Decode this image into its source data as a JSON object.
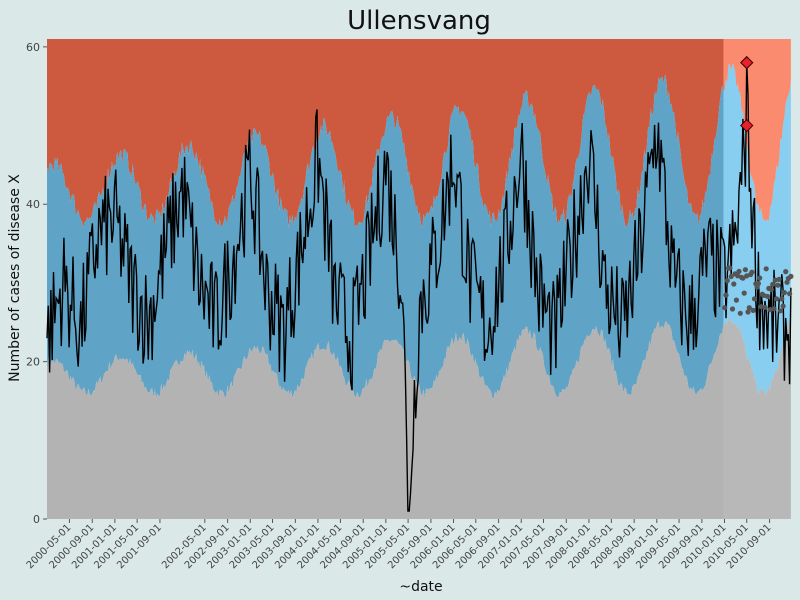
{
  "chart_data": {
    "type": "line",
    "title": "Ullensvang",
    "xlabel": "~date",
    "ylabel": "Number of cases of disease X",
    "ylim": [
      0,
      61
    ],
    "yticks": [
      0,
      20,
      40,
      60
    ],
    "xlim": [
      "2000-01-01",
      "2010-12-31"
    ],
    "prediction_start": "2010-01-01",
    "xtick_labels": [
      "2000-05-01",
      "2000-09-01",
      "2001-01-01",
      "2001-05-01",
      "2001-09-01",
      "2002-05-01",
      "2002-09-01",
      "2003-01-01",
      "2003-05-01",
      "2003-09-01",
      "2004-01-01",
      "2004-05-01",
      "2004-09-01",
      "2005-01-01",
      "2005-05-01",
      "2005-09-01",
      "2006-01-01",
      "2006-05-01",
      "2006-09-01",
      "2007-01-01",
      "2007-05-01",
      "2007-09-01",
      "2008-01-01",
      "2008-05-01",
      "2008-09-01",
      "2009-01-01",
      "2009-05-01",
      "2009-09-01",
      "2010-01-01",
      "2010-05-01",
      "2010-09-01"
    ],
    "zones": {
      "description": "seasonal threshold bands (baseline: grey below lower, blue between lower and upper, red above upper); lighter shades in prediction year",
      "lower_min": 16,
      "lower_max": 26,
      "upper_min": 36,
      "upper_max": 56,
      "peak_month": 1
    },
    "observed": {
      "2000-01": 23,
      "2000-04": 30,
      "2000-07": 24,
      "2000-10": 36,
      "2001-01": 38,
      "2001-04": 30,
      "2001-07": 25,
      "2001-10": 34,
      "2002-01": 42,
      "2002-04": 30,
      "2002-07": 25,
      "2002-10": 33,
      "2003-01": 44,
      "2003-04": 29,
      "2003-07": 24,
      "2003-10": 34,
      "2004-01": 46,
      "2004-04": 28,
      "2004-07": 23,
      "2004-10": 33,
      "2005-01": 45,
      "2005-04": 30,
      "2005-05": 1,
      "2005-07": 27,
      "2005-10": 34,
      "2006-01": 46,
      "2006-04": 30,
      "2006-07": 24,
      "2006-10": 33,
      "2007-01": 47,
      "2007-04": 29,
      "2007-07": 23,
      "2007-10": 34,
      "2008-01": 47,
      "2008-04": 29,
      "2008-07": 24,
      "2008-10": 34,
      "2009-01": 50,
      "2009-04": 30,
      "2009-07": 25,
      "2009-10": 33,
      "2010-01": 30,
      "2010-03": 35,
      "2010-05": 50,
      "2010-07": 29,
      "2010-09": 25,
      "2010-12": 24
    },
    "predicted_points_range": [
      26,
      32
    ],
    "alerts": [
      {
        "date": "2010-05-01",
        "value": 58
      },
      {
        "date": "2010-05-01",
        "value": 50
      }
    ],
    "colors": {
      "background": "#dae8e8",
      "low": "#b3b3b3",
      "normal": "#5fa3c7",
      "high": "#cd5a3e",
      "low_pred": "#b8b8b8",
      "normal_pred": "#87cef0",
      "high_pred": "#fa8b6e",
      "line": "#000000",
      "prediction_points": "#555555",
      "alert": "#e8202a"
    }
  }
}
